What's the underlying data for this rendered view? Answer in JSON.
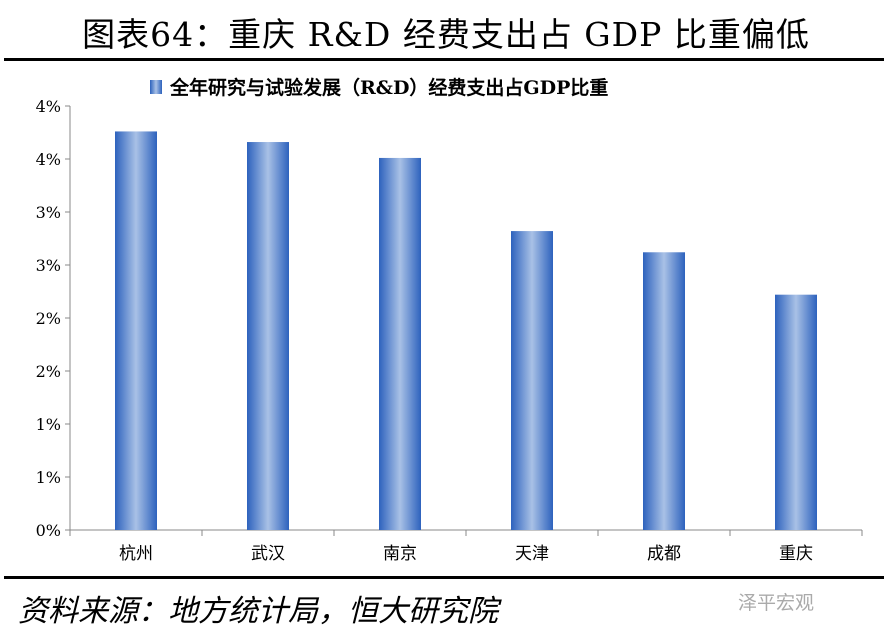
{
  "title": "图表64：重庆 R&D 经费支出占 GDP 比重偏低",
  "source": "资料来源：地方统计局，恒大研究院",
  "watermark": "泽平宏观",
  "chart_data": {
    "type": "bar",
    "categories": [
      "杭州",
      "武汉",
      "南京",
      "天津",
      "成都",
      "重庆"
    ],
    "series": [
      {
        "name": "全年研究与试验发展（R&D）经费支出占GDP比重",
        "values": [
          3.76,
          3.66,
          3.51,
          2.82,
          2.62,
          2.22
        ]
      }
    ],
    "yticks": [
      0,
      0.5,
      1.0,
      1.5,
      2.0,
      2.5,
      3.0,
      3.5,
      4.0
    ],
    "ytick_labels": [
      "0%",
      "1%",
      "1%",
      "2%",
      "2%",
      "3%",
      "3%",
      "4%",
      "4%"
    ],
    "ylim": [
      0,
      4
    ],
    "grid": false,
    "legend": "top",
    "bar_color": "#3a6fc4"
  }
}
